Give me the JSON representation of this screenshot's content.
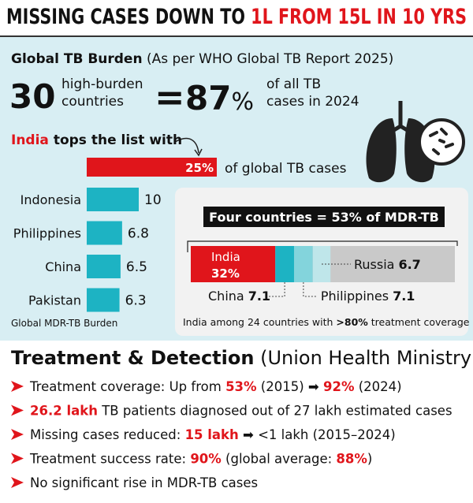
{
  "header": {
    "title": "MISSING CASES DOWN TO ",
    "title_highlight": "1L FROM 15L IN 10 YRS"
  },
  "burden": {
    "title": "Global TB Burden",
    "source": " (As per WHO Global TB Report 2025)",
    "count": "30",
    "count_desc": [
      "high-burden",
      "countries"
    ],
    "equals": "=",
    "share": "87",
    "share_unit": "%",
    "share_desc": [
      "of all TB",
      "cases in 2024"
    ]
  },
  "chart_data": [
    {
      "type": "bar",
      "title_highlight": "India",
      "title": " tops the list with",
      "values": [
        25
      ],
      "value_labels": [
        "25%"
      ],
      "label": "of global TB cases",
      "color": "#e0151b"
    },
    {
      "type": "hbar",
      "categories": [
        "Indonesia",
        "Philippines",
        "China",
        "Pakistan"
      ],
      "values": [
        10,
        6.8,
        6.5,
        6.3
      ],
      "color": "#1db3c3",
      "caption": "Global MDR-TB Burden"
    },
    {
      "type": "stacked-bar",
      "title": "Four countries = 53% of MDR-TB",
      "series": [
        {
          "name": "India",
          "values": [
            32
          ],
          "value_labels": [
            "32%"
          ],
          "color": "#e0151b"
        },
        {
          "name": "China",
          "values": [
            7.1
          ],
          "color": "#1db3c3"
        },
        {
          "name": "Philippines",
          "values": [
            7.1
          ],
          "color": "#83d4dc"
        },
        {
          "name": "Russia",
          "values": [
            6.7
          ],
          "color": "#bfe6ea"
        }
      ],
      "note": "India among 24 countries with ",
      "note_highlight": ">80%",
      "note_end": " treatment coverage"
    }
  ],
  "treatment": {
    "title": "Treatment & Detection",
    "source": " (Union Health Ministry)",
    "items": [
      [
        {
          "text": "Treatment coverage: Up from "
        },
        {
          "text": "53%",
          "highlight": true
        },
        {
          "text": " (2015) ➡ "
        },
        {
          "text": "92%",
          "highlight": true
        },
        {
          "text": " (2024)"
        }
      ],
      [
        {
          "text": "26.2 lakh",
          "highlight": true
        },
        {
          "text": " TB patients diagnosed out of 27 lakh estimated cases"
        }
      ],
      [
        {
          "text": "Missing cases reduced: "
        },
        {
          "text": "15 lakh",
          "highlight": true
        },
        {
          "text": " ➡ <1 lakh (2015–2024)"
        }
      ],
      [
        {
          "text": "Treatment success rate: "
        },
        {
          "text": "90%",
          "highlight": true
        },
        {
          "text": " (global average: "
        },
        {
          "text": "88%",
          "highlight": true
        },
        {
          "text": ")"
        }
      ],
      [
        {
          "text": "No significant rise in MDR-TB cases"
        }
      ]
    ]
  }
}
